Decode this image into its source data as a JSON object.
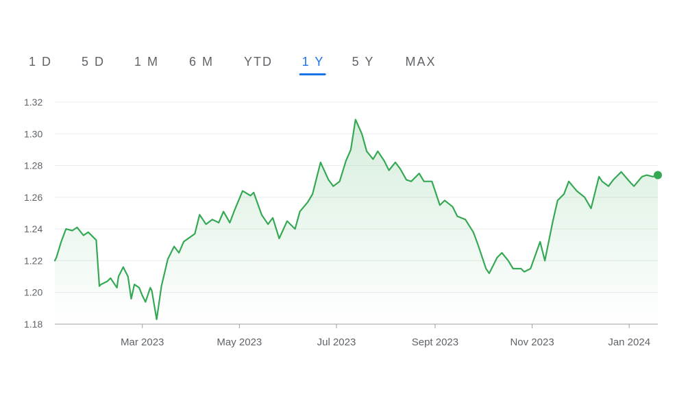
{
  "range_tabs": {
    "items": [
      "1 D",
      "5 D",
      "1 M",
      "6 M",
      "YTD",
      "1 Y",
      "5 Y",
      "MAX"
    ],
    "active": "1 Y"
  },
  "colors": {
    "line": "#34a853",
    "active_tab": "#1a73e8",
    "tab_text": "#5f6368",
    "grid": "#ebebeb"
  },
  "chart_data": {
    "type": "area",
    "title": "",
    "xlabel": "",
    "ylabel": "",
    "ylim": [
      1.18,
      1.32
    ],
    "yticks": [
      1.18,
      1.2,
      1.22,
      1.24,
      1.26,
      1.28,
      1.3,
      1.32
    ],
    "ytick_labels": [
      "1.18",
      "1.20",
      "1.22",
      "1.24",
      "1.26",
      "1.28",
      "1.30",
      "1.32"
    ],
    "xlim": [
      "2023-01-05",
      "2024-01-19"
    ],
    "xticks": [
      "2023-03-01",
      "2023-05-01",
      "2023-07-01",
      "2023-09-01",
      "2023-11-01",
      "2024-01-01"
    ],
    "xtick_labels": [
      "Mar 2023",
      "May 2023",
      "Jul 2023",
      "Sept 2023",
      "Nov 2023",
      "Jan 2024"
    ],
    "grid": true,
    "series": [
      {
        "x": [
          "2023-01-05",
          "2023-01-06",
          "2023-01-09",
          "2023-01-12",
          "2023-01-16",
          "2023-01-19",
          "2023-01-23",
          "2023-01-26",
          "2023-01-31",
          "2023-02-02",
          "2023-02-03",
          "2023-02-07",
          "2023-02-09",
          "2023-02-13",
          "2023-02-14",
          "2023-02-17",
          "2023-02-20",
          "2023-02-22",
          "2023-02-24",
          "2023-02-27",
          "2023-03-01",
          "2023-03-03",
          "2023-03-06",
          "2023-03-07",
          "2023-03-10",
          "2023-03-13",
          "2023-03-17",
          "2023-03-21",
          "2023-03-24",
          "2023-03-27",
          "2023-04-03",
          "2023-04-06",
          "2023-04-10",
          "2023-04-14",
          "2023-04-18",
          "2023-04-21",
          "2023-04-25",
          "2023-04-28",
          "2023-05-03",
          "2023-05-08",
          "2023-05-10",
          "2023-05-15",
          "2023-05-19",
          "2023-05-22",
          "2023-05-26",
          "2023-05-31",
          "2023-06-05",
          "2023-06-08",
          "2023-06-13",
          "2023-06-16",
          "2023-06-21",
          "2023-06-26",
          "2023-06-29",
          "2023-07-03",
          "2023-07-07",
          "2023-07-10",
          "2023-07-13",
          "2023-07-17",
          "2023-07-20",
          "2023-07-24",
          "2023-07-27",
          "2023-07-31",
          "2023-08-03",
          "2023-08-07",
          "2023-08-10",
          "2023-08-14",
          "2023-08-17",
          "2023-08-22",
          "2023-08-25",
          "2023-08-30",
          "2023-09-04",
          "2023-09-07",
          "2023-09-12",
          "2023-09-15",
          "2023-09-20",
          "2023-09-25",
          "2023-09-28",
          "2023-10-03",
          "2023-10-05",
          "2023-10-10",
          "2023-10-13",
          "2023-10-17",
          "2023-10-20",
          "2023-10-25",
          "2023-10-27",
          "2023-10-31",
          "2023-11-06",
          "2023-11-09",
          "2023-11-14",
          "2023-11-17",
          "2023-11-21",
          "2023-11-24",
          "2023-11-29",
          "2023-12-04",
          "2023-12-08",
          "2023-12-13",
          "2023-12-15",
          "2023-12-19",
          "2023-12-22",
          "2023-12-27",
          "2024-01-02",
          "2024-01-04",
          "2024-01-09",
          "2024-01-12",
          "2024-01-16",
          "2024-01-19"
        ],
        "values": [
          1.22,
          1.222,
          1.232,
          1.24,
          1.239,
          1.241,
          1.236,
          1.238,
          1.233,
          1.204,
          1.205,
          1.207,
          1.209,
          1.203,
          1.21,
          1.216,
          1.21,
          1.196,
          1.205,
          1.203,
          1.198,
          1.194,
          1.203,
          1.201,
          1.183,
          1.204,
          1.221,
          1.229,
          1.225,
          1.232,
          1.237,
          1.249,
          1.243,
          1.246,
          1.244,
          1.251,
          1.244,
          1.252,
          1.264,
          1.261,
          1.263,
          1.249,
          1.243,
          1.247,
          1.234,
          1.245,
          1.24,
          1.251,
          1.257,
          1.262,
          1.282,
          1.271,
          1.267,
          1.27,
          1.283,
          1.29,
          1.309,
          1.3,
          1.289,
          1.284,
          1.289,
          1.283,
          1.277,
          1.282,
          1.278,
          1.271,
          1.27,
          1.275,
          1.27,
          1.27,
          1.255,
          1.258,
          1.254,
          1.248,
          1.246,
          1.238,
          1.23,
          1.215,
          1.212,
          1.222,
          1.225,
          1.22,
          1.215,
          1.215,
          1.213,
          1.215,
          1.232,
          1.22,
          1.245,
          1.258,
          1.262,
          1.27,
          1.264,
          1.26,
          1.253,
          1.273,
          1.27,
          1.267,
          1.271,
          1.276,
          1.269,
          1.267,
          1.273,
          1.274,
          1.273,
          1.274
        ]
      }
    ],
    "end_marker": true
  }
}
